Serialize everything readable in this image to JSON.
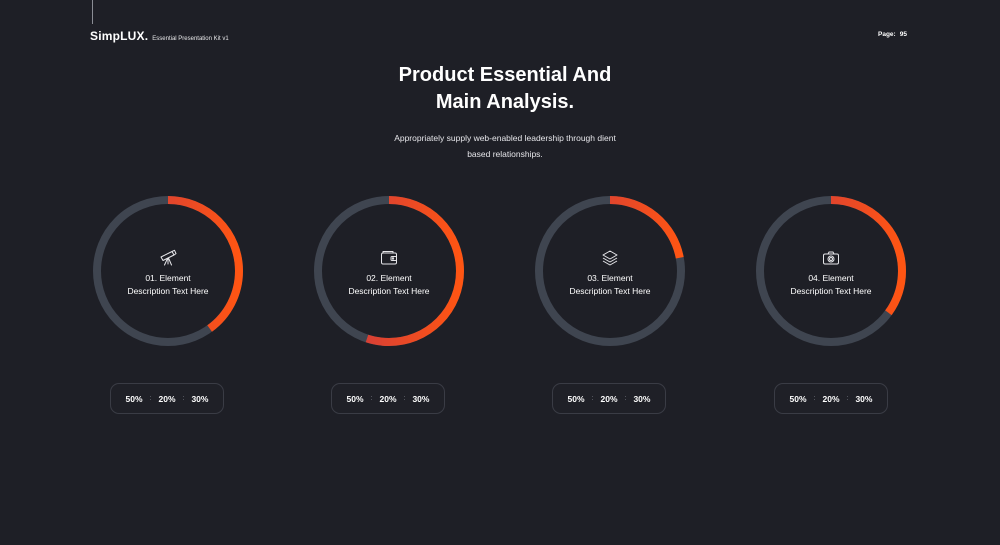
{
  "header": {
    "brand": "SimpLUX.",
    "kit_name": "Essential Presentation Kit v1",
    "page_label": "Page:",
    "page_number": "95"
  },
  "title_lines": [
    "Product Essential And",
    "Main Analysis."
  ],
  "subtitle_lines": [
    "Appropriately supply web-enabled leadership through dient",
    "based relationships."
  ],
  "colors": {
    "background": "#1e1f26",
    "track": "#3f4550",
    "arc_start": "#c43546",
    "arc_end": "#ff5513"
  },
  "elements": [
    {
      "title": "01. Element",
      "desc": "Description Text Here",
      "icon": "telescope-icon",
      "progress": 0.4,
      "stats": [
        "50%",
        "20%",
        "30%"
      ]
    },
    {
      "title": "02. Element",
      "desc": "Description Text Here",
      "icon": "wallet-icon",
      "progress": 0.55,
      "stats": [
        "50%",
        "20%",
        "30%"
      ]
    },
    {
      "title": "03. Element",
      "desc": "Description Text Here",
      "icon": "layers-icon",
      "progress": 0.22,
      "stats": [
        "50%",
        "20%",
        "30%"
      ]
    },
    {
      "title": "04. Element",
      "desc": "Description Text Here",
      "icon": "camera-icon",
      "progress": 0.35,
      "stats": [
        "50%",
        "20%",
        "30%"
      ]
    }
  ]
}
